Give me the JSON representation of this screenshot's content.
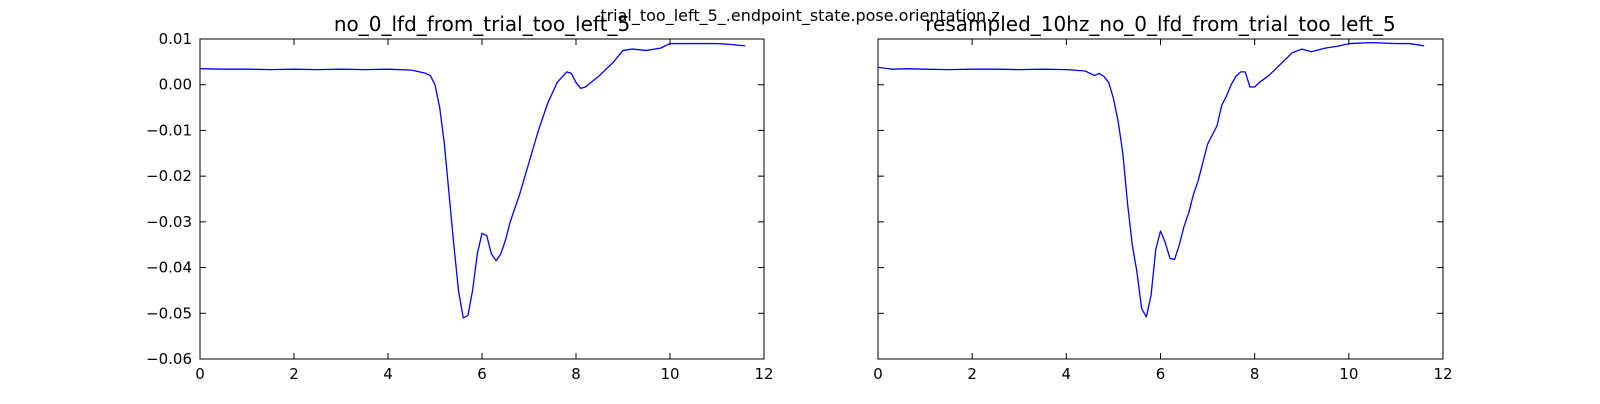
{
  "figure": {
    "suptitle": "trial_too_left_5_.endpoint_state.pose.orientation.z"
  },
  "chart_data": [
    {
      "type": "line",
      "title": "no_0_lfd_from_trial_too_left_5",
      "xlabel": "",
      "ylabel": "",
      "xlim": [
        0,
        12
      ],
      "ylim": [
        -0.06,
        0.01
      ],
      "xticks": [
        0,
        2,
        4,
        6,
        8,
        10,
        12
      ],
      "xtick_labels": [
        "0",
        "2",
        "4",
        "6",
        "8",
        "10",
        "12"
      ],
      "yticks": [
        -0.06,
        -0.05,
        -0.04,
        -0.03,
        -0.02,
        -0.01,
        0.0,
        0.01
      ],
      "ytick_labels": [
        "−0.06",
        "−0.05",
        "−0.04",
        "−0.03",
        "−0.02",
        "−0.01",
        "0.00",
        "0.01"
      ],
      "grid": false,
      "line_color": "#0000ff",
      "series": [
        {
          "x": [
            0.0,
            0.5,
            1.0,
            1.5,
            2.0,
            2.5,
            3.0,
            3.5,
            4.0,
            4.5,
            4.8,
            4.9,
            5.0,
            5.1,
            5.2,
            5.3,
            5.4,
            5.5,
            5.6,
            5.7,
            5.8,
            5.9,
            6.0,
            6.1,
            6.2,
            6.3,
            6.4,
            6.5,
            6.6,
            6.8,
            7.0,
            7.2,
            7.4,
            7.6,
            7.8,
            7.9,
            8.0,
            8.1,
            8.2,
            8.5,
            8.8,
            9.0,
            9.2,
            9.5,
            9.8,
            10.0,
            10.5,
            11.0,
            11.3,
            11.6
          ],
          "y": [
            0.0035,
            0.0034,
            0.0034,
            0.0033,
            0.0034,
            0.0033,
            0.0034,
            0.0033,
            0.0034,
            0.0032,
            0.0025,
            0.002,
            0.0,
            -0.005,
            -0.013,
            -0.024,
            -0.035,
            -0.045,
            -0.051,
            -0.0505,
            -0.045,
            -0.037,
            -0.0325,
            -0.033,
            -0.037,
            -0.0385,
            -0.037,
            -0.034,
            -0.03,
            -0.024,
            -0.017,
            -0.01,
            -0.004,
            0.0005,
            0.0028,
            0.0025,
            0.0005,
            -0.0008,
            -0.0005,
            0.002,
            0.005,
            0.0075,
            0.0078,
            0.0075,
            0.008,
            0.009,
            0.009,
            0.009,
            0.0088,
            0.0085
          ]
        }
      ]
    },
    {
      "type": "line",
      "title": "resampled_10hz_no_0_lfd_from_trial_too_left_5",
      "xlabel": "",
      "ylabel": "",
      "xlim": [
        0,
        12
      ],
      "ylim": [
        -0.06,
        0.01
      ],
      "xticks": [
        0,
        2,
        4,
        6,
        8,
        10,
        12
      ],
      "xtick_labels": [
        "0",
        "2",
        "4",
        "6",
        "8",
        "10",
        "12"
      ],
      "yticks": [
        -0.06,
        -0.05,
        -0.04,
        -0.03,
        -0.02,
        -0.01,
        0.0,
        0.01
      ],
      "ytick_labels": [],
      "grid": false,
      "line_color": "#0000ff",
      "series": [
        {
          "x": [
            0.0,
            0.3,
            0.6,
            1.0,
            1.5,
            2.0,
            2.5,
            3.0,
            3.5,
            4.0,
            4.4,
            4.6,
            4.7,
            4.8,
            4.9,
            5.0,
            5.1,
            5.2,
            5.3,
            5.4,
            5.5,
            5.6,
            5.7,
            5.8,
            5.9,
            6.0,
            6.1,
            6.2,
            6.3,
            6.4,
            6.5,
            6.6,
            6.7,
            6.8,
            6.9,
            7.0,
            7.1,
            7.2,
            7.3,
            7.4,
            7.5,
            7.6,
            7.7,
            7.8,
            7.9,
            8.0,
            8.1,
            8.3,
            8.5,
            8.8,
            9.0,
            9.2,
            9.5,
            9.8,
            10.0,
            10.5,
            11.0,
            11.3,
            11.6
          ],
          "y": [
            0.0038,
            0.0034,
            0.0035,
            0.0034,
            0.0033,
            0.0034,
            0.0034,
            0.0033,
            0.0034,
            0.0033,
            0.003,
            0.002,
            0.0025,
            0.0018,
            0.0005,
            -0.003,
            -0.008,
            -0.015,
            -0.026,
            -0.035,
            -0.041,
            -0.049,
            -0.0508,
            -0.046,
            -0.036,
            -0.032,
            -0.0345,
            -0.038,
            -0.0382,
            -0.035,
            -0.031,
            -0.028,
            -0.024,
            -0.021,
            -0.017,
            -0.013,
            -0.011,
            -0.009,
            -0.0045,
            -0.0025,
            0.0,
            0.0018,
            0.0028,
            0.0028,
            -0.0005,
            -0.0005,
            0.0005,
            0.002,
            0.004,
            0.007,
            0.0078,
            0.0072,
            0.008,
            0.0085,
            0.009,
            0.0092,
            0.009,
            0.009,
            0.0085
          ]
        }
      ]
    }
  ]
}
